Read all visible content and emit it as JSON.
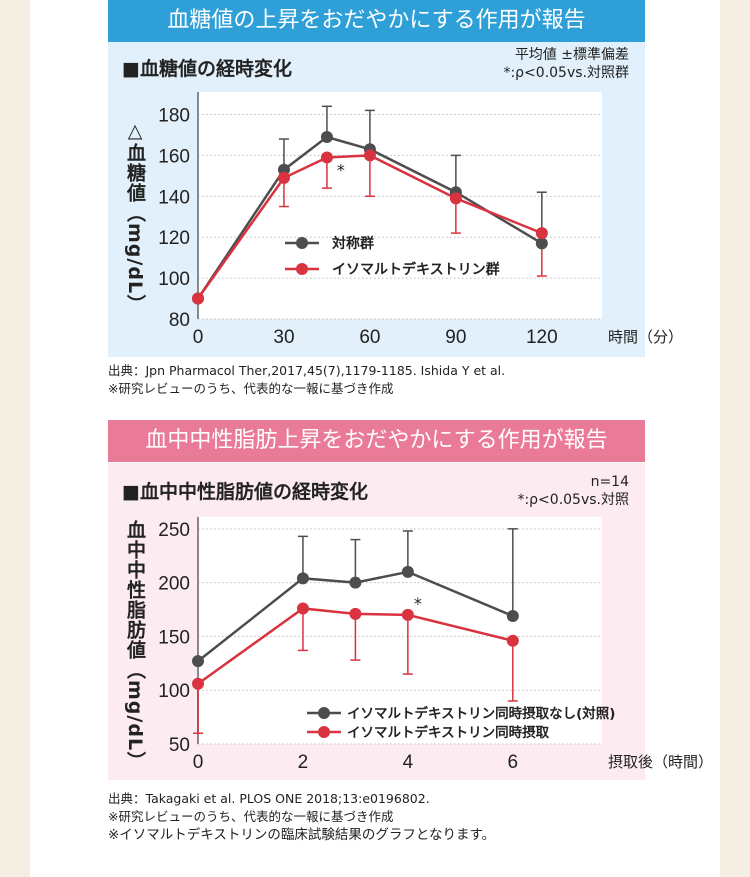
{
  "section1": {
    "header": "血糖値の上昇をおだやかにする作用が報告",
    "chart_title": "■血糖値の経時変化",
    "note_lines": [
      "平均値 ±標準偏差",
      "*:ρ<0.05vs.対照群"
    ],
    "source_lines": [
      "出典：Jpn Pharmacol Ther,2017,45(7),1179-1185. Ishida Y et al.",
      "※研究レビューのうち、代表的な一報に基づき作成"
    ]
  },
  "section2": {
    "header": "血中中性脂肪上昇をおだやかにする作用が報告",
    "chart_title": "■血中中性脂肪値の経時変化",
    "note_lines": [
      "n=14",
      "*:ρ<0.05vs.対照"
    ],
    "source_lines": [
      "出典：Takagaki et al. PLOS ONE 2018;13:e0196802.",
      "※研究レビューのうち、代表的な一報に基づき作成",
      "※イソマルトデキストリンの臨床試験結果のグラフとなります。"
    ]
  },
  "colors": {
    "blue_header": "#2f9fd8",
    "blue_body": "#e1f0fa",
    "pink_header": "#e97a98",
    "pink_body": "#fcebf1",
    "control": "#4d4d4f",
    "treatment": "#d8333f"
  },
  "chart_data": [
    {
      "type": "line",
      "ylabel": "△血糖値（mg/dL）",
      "xlabel": "時間（分）",
      "x": [
        0,
        30,
        45,
        60,
        90,
        120
      ],
      "xticks": [
        0,
        30,
        60,
        90,
        120
      ],
      "yticks": [
        80,
        100,
        120,
        140,
        160,
        180
      ],
      "ylim": [
        80,
        191
      ],
      "xlim": [
        0,
        141
      ],
      "grid": true,
      "legend_position": "center",
      "series": [
        {
          "name": "対称群",
          "color": "#4d4d4f",
          "values": [
            90,
            153,
            169,
            163,
            142,
            117
          ],
          "error_upper": [
            null,
            168,
            184,
            182,
            160,
            142
          ]
        },
        {
          "name": "イソマルトデキストリン群",
          "color": "#d8333f",
          "values": [
            90,
            149,
            159,
            160,
            139,
            122
          ],
          "error_lower": [
            null,
            135,
            144,
            140,
            122,
            101
          ]
        }
      ],
      "annotations": [
        {
          "text": "*",
          "x": 45
        }
      ]
    },
    {
      "type": "line",
      "ylabel": "血中中性脂肪値（mg/dL）",
      "xlabel": "摂取後（時間）",
      "x": [
        0,
        2,
        3,
        4,
        6
      ],
      "xticks": [
        0,
        2,
        4,
        6
      ],
      "yticks": [
        50,
        100,
        150,
        200,
        250
      ],
      "ylim": [
        50,
        261
      ],
      "xlim": [
        0,
        7.7
      ],
      "grid": true,
      "legend_position": "bottom-right",
      "series": [
        {
          "name": "イソマルトデキストリン同時摂取なし(対照)",
          "color": "#4d4d4f",
          "values": [
            127,
            204,
            200,
            210,
            169
          ],
          "error_upper": [
            null,
            243,
            240,
            248,
            250
          ]
        },
        {
          "name": "イソマルトデキストリン同時摂取",
          "color": "#d8333f",
          "values": [
            106,
            176,
            171,
            170,
            146
          ],
          "error_lower": [
            60,
            137,
            128,
            115,
            90
          ]
        }
      ],
      "annotations": [
        {
          "text": "*",
          "x": 4
        }
      ]
    }
  ]
}
